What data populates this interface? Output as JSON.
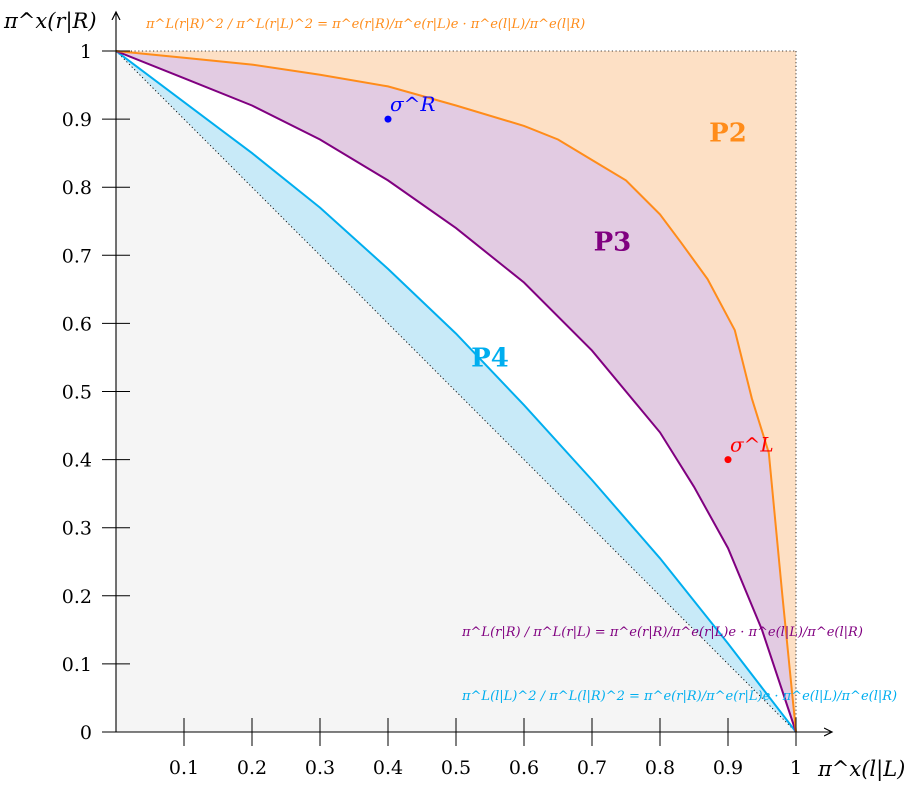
{
  "chart_data": {
    "type": "line",
    "xlabel": "π^x(l|L)",
    "ylabel": "π^x(r|R)",
    "xlim": [
      0,
      1
    ],
    "ylim": [
      0,
      1
    ],
    "x_ticks": [
      0.1,
      0.2,
      0.3,
      0.4,
      0.5,
      0.6,
      0.7,
      0.8,
      0.9,
      1
    ],
    "x_tick_labels": [
      "0.1",
      "0.2",
      "0.3",
      "0.4",
      "0.5",
      "0.6",
      "0.7",
      "0.8",
      "0.9",
      "1"
    ],
    "y_ticks": [
      0,
      0.1,
      0.2,
      0.3,
      0.4,
      0.5,
      0.6,
      0.7,
      0.8,
      0.9,
      1
    ],
    "y_tick_labels": [
      "0",
      "0.1",
      "0.2",
      "0.3",
      "0.4",
      "0.5",
      "0.6",
      "0.7",
      "0.8",
      "0.9",
      "1"
    ],
    "grid": false,
    "colors": {
      "orange": "#ff8c1a",
      "orange_fill": "#fde0c5",
      "purple": "#800080",
      "purple_fill": "#e2cbe2",
      "cyan": "#00aeef",
      "cyan_fill": "#c8eaf8",
      "gray_fill": "#f5f5f5",
      "blue_point": "#0000ff",
      "red_point": "#ff0000"
    },
    "series": [
      {
        "name": "π^L(r|R)^2 / π^L(r|L)^2 = π^e(r|R)/π^e(r|L)e · π^e(l|L)/π^e(l|R)",
        "color": "orange",
        "x": [
          0,
          0.1,
          0.2,
          0.3,
          0.4,
          0.5,
          0.6,
          0.65,
          0.7,
          0.75,
          0.8,
          0.83,
          0.87,
          0.91,
          0.935,
          0.96,
          0.98,
          1
        ],
        "y": [
          1,
          0.99,
          0.98,
          0.965,
          0.948,
          0.92,
          0.89,
          0.87,
          0.84,
          0.81,
          0.76,
          0.72,
          0.665,
          0.59,
          0.49,
          0.41,
          0.2,
          0
        ]
      },
      {
        "name": "π^L(r|R) / π^L(r|L) = π^e(r|R)/π^e(r|L)e · π^e(l|L)/π^e(l|R)",
        "color": "purple",
        "x": [
          0,
          0.1,
          0.2,
          0.3,
          0.4,
          0.5,
          0.6,
          0.7,
          0.8,
          0.85,
          0.9,
          0.95,
          1
        ],
        "y": [
          1,
          0.96,
          0.92,
          0.87,
          0.81,
          0.74,
          0.66,
          0.56,
          0.44,
          0.36,
          0.27,
          0.15,
          0
        ]
      },
      {
        "name": "π^L(l|L)^2 / π^L(l|R)^2 = π^e(r|R)/π^e(r|L)e · π^e(l|L)/π^e(l|R)",
        "color": "cyan",
        "x": [
          0,
          0.1,
          0.2,
          0.3,
          0.4,
          0.5,
          0.6,
          0.7,
          0.8,
          0.9,
          1
        ],
        "y": [
          1,
          0.925,
          0.85,
          0.77,
          0.68,
          0.585,
          0.48,
          0.37,
          0.255,
          0.13,
          0
        ]
      },
      {
        "name": "dotted diagonal",
        "color": "black",
        "x": [
          0,
          1
        ],
        "y": [
          1,
          0
        ]
      }
    ],
    "points": [
      {
        "label": "σ^R",
        "x": 0.4,
        "y": 0.9,
        "color": "blue_point"
      },
      {
        "label": "σ^L",
        "x": 0.9,
        "y": 0.4,
        "color": "red_point"
      }
    ],
    "regions": [
      {
        "label": "P2",
        "color": "orange",
        "x": 0.9,
        "y": 0.88
      },
      {
        "label": "P3",
        "color": "purple",
        "x": 0.73,
        "y": 0.72
      },
      {
        "label": "P4",
        "color": "cyan",
        "x": 0.55,
        "y": 0.55
      }
    ],
    "formulas": [
      {
        "id": "orange",
        "text": "π^L(r|R)^2 / π^L(r|L)^2 = π^e(r|R)/π^e(r|L)e · π^e(l|L)/π^e(l|R)"
      },
      {
        "id": "purple",
        "text": "π^L(r|R) / π^L(r|L) = π^e(r|R)/π^e(r|L)e · π^e(l|L)/π^e(l|R)"
      },
      {
        "id": "cyan",
        "text": "π^L(l|L)^2 / π^L(l|R)^2 = π^e(r|R)/π^e(r|L)e · π^e(l|L)/π^e(l|R)"
      }
    ]
  }
}
